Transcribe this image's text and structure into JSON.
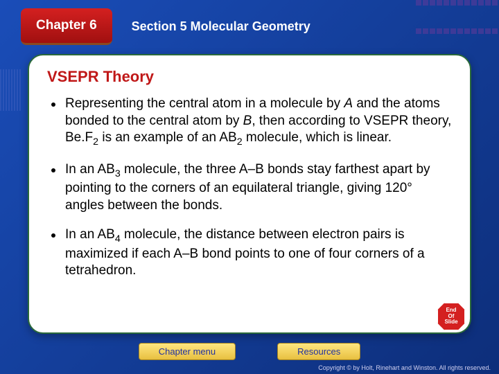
{
  "header": {
    "chapter_label": "Chapter 6",
    "section_label": "Section 5  Molecular Geometry"
  },
  "panel": {
    "title": "VSEPR Theory",
    "bullets": [
      "Representing the central atom in a molecule by A and the atoms bonded to the central atom by B, then according to VSEPR theory, Be.F2 is an example of an AB2 molecule, which is linear.",
      "In an AB3 molecule, the three A–B bonds stay farthest apart by pointing to the corners of an equilateral triangle, giving 120° angles between the bonds.",
      "In an AB4 molecule, the distance between electron pairs is maximized if each A–B bond points to one of four corners of a tetrahedron."
    ]
  },
  "end_badge": {
    "line1": "End",
    "line2": "Of",
    "line3": "Slide"
  },
  "buttons": {
    "chapter_menu": "Chapter menu",
    "resources": "Resources"
  },
  "copyright": "Copyright © by Holt, Rinehart and Winston. All rights reserved.",
  "colors": {
    "bg_gradient_start": "#1a4db8",
    "bg_gradient_end": "#0d2e7a",
    "chapter_box": "#d42020",
    "panel_bg": "#ffffff",
    "panel_border": "#2a6a3a",
    "title_color": "#c01818",
    "button_bg": "#ffe680",
    "button_text": "#2030a0"
  }
}
